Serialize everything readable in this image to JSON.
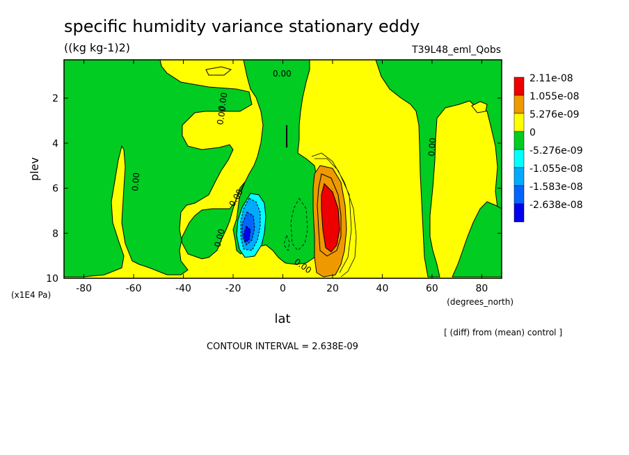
{
  "chart_data": {
    "type": "contour",
    "title": "specific humidity variance stationary eddy",
    "units": "((kg kg-1)2)",
    "run_label": "T39L48_eml_Qobs",
    "xlabel": "lat",
    "x_units": "(degrees_north)",
    "ylabel": "plev",
    "y_units": "(x1E4 Pa)",
    "xlim": [
      -88,
      88
    ],
    "ylim": [
      10,
      0.3
    ],
    "x_ticks": [
      -80,
      -60,
      -40,
      -20,
      0,
      20,
      40,
      60,
      80
    ],
    "y_ticks": [
      2,
      4,
      6,
      8,
      10
    ],
    "contour_interval": "CONTOUR INTERVAL = 2.638E-09",
    "footnote": "[ (diff) from (mean) control ]",
    "contour_labels": [
      "0.00",
      "0.00",
      "0.00",
      "0.00",
      "0.00",
      "0.00",
      "0.00",
      "0.00"
    ],
    "legend": [
      {
        "label": "2.11e-08",
        "color": "#ee0000"
      },
      {
        "label": "1.055e-08",
        "color": "#ee9900"
      },
      {
        "label": "5.276e-09",
        "color": "#ffff00"
      },
      {
        "label": "0",
        "color": "#00cc22"
      },
      {
        "label": "-5.276e-09",
        "color": "#00ffff"
      },
      {
        "label": "-1.055e-08",
        "color": "#00aaff"
      },
      {
        "label": "-1.583e-08",
        "color": "#0066ff"
      },
      {
        "label": "-2.638e-08",
        "color": "#0000ee"
      }
    ],
    "regions": [
      {
        "name": "positive-background",
        "color": "#ffff00"
      },
      {
        "name": "north-pole-negative",
        "color": "#00cc22"
      },
      {
        "name": "tropical-negative",
        "color": "#00cc22"
      },
      {
        "name": "southern-negative",
        "color": "#00cc22"
      },
      {
        "name": "south-pole-negative",
        "color": "#00cc22"
      },
      {
        "name": "minus20-minimum",
        "color": "#00aaff"
      },
      {
        "name": "plus20-maximum",
        "color": "#ee0000"
      }
    ]
  }
}
